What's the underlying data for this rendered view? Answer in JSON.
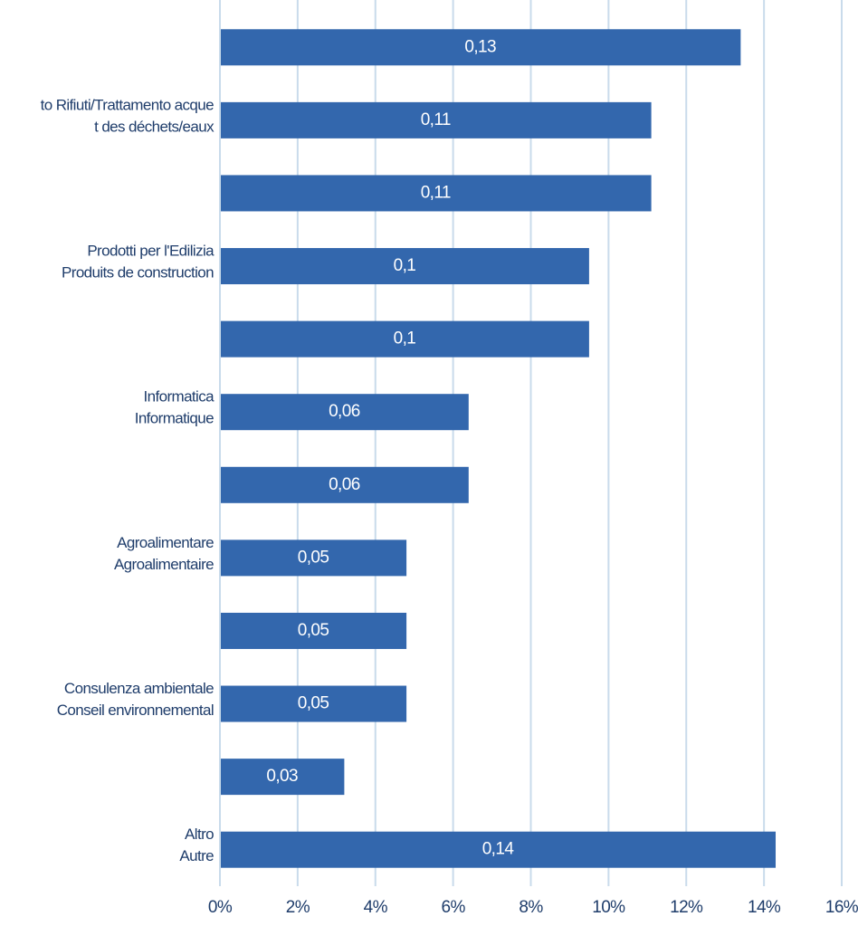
{
  "chart_data": {
    "type": "hbar",
    "categories": [
      null,
      [
        "to Rifiuti/Trattamento acque",
        "t des déchets/eaux"
      ],
      null,
      [
        "Prodotti per l'Edilizia",
        "Produits de construction"
      ],
      null,
      [
        "Informatica",
        "Informatique"
      ],
      null,
      [
        "Agroalimentare",
        "Agroalimentaire"
      ],
      null,
      [
        "Consulenza ambientale",
        "Conseil environnemental"
      ],
      null,
      [
        "Altro",
        "Autre"
      ]
    ],
    "values": [
      13.4,
      11.1,
      11.1,
      9.5,
      9.5,
      6.4,
      6.4,
      4.8,
      4.8,
      4.8,
      3.2,
      14.3
    ],
    "value_labels": [
      "0,13",
      "0,11",
      "0,11",
      "0,1",
      "0,1",
      "0,06",
      "0,06",
      "0,05",
      "0,05",
      "0,05",
      "0,03",
      "0,14"
    ],
    "color": "#3367ad",
    "xlim": [
      0,
      16
    ],
    "xticks": [
      {
        "value": 0,
        "label": "0%"
      },
      {
        "value": 2,
        "label": "2%"
      },
      {
        "value": 4,
        "label": "4%"
      },
      {
        "value": 6,
        "label": "6%"
      },
      {
        "value": 8,
        "label": "8%"
      },
      {
        "value": 10,
        "label": "10%"
      },
      {
        "value": 12,
        "label": "12%"
      },
      {
        "value": 14,
        "label": "14%"
      },
      {
        "value": 16,
        "label": "16%"
      }
    ],
    "grid": true
  }
}
